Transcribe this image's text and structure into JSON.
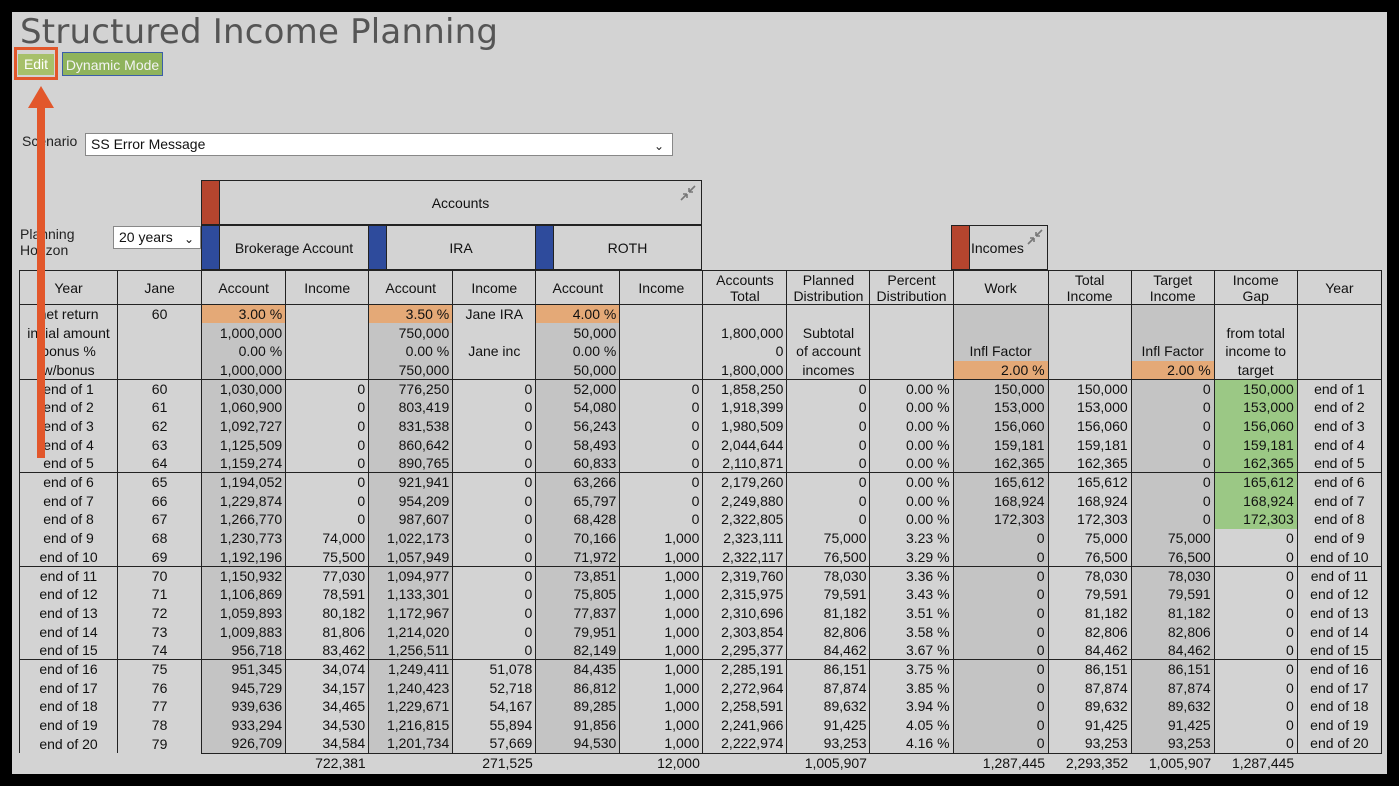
{
  "page": {
    "title": "Structured Income Planning",
    "edit_label": "Edit",
    "dynamic_label": "Dynamic Mode"
  },
  "scenario": {
    "label": "Scenario",
    "value": "SS Error Message"
  },
  "horizon": {
    "label_line1": "Planning",
    "label_line2": "Horizon",
    "value": "20 years"
  },
  "groups": {
    "accounts": "Accounts",
    "brokerage": "Brokerage Account",
    "ira": "IRA",
    "roth": "ROTH",
    "incomes": "Incomes"
  },
  "headers": {
    "year": "Year",
    "jane": "Jane",
    "account": "Account",
    "income": "Income",
    "accounts_total_1": "Accounts",
    "accounts_total_2": "Total",
    "planned_1": "Planned",
    "planned_2": "Distribution",
    "percent_1": "Percent",
    "percent_2": "Distribution",
    "work": "Work",
    "total_income_1": "Total",
    "total_income_2": "Income",
    "target_1": "Target",
    "target_2": "Income",
    "gap_1": "Income",
    "gap_2": "Gap",
    "year_end": "Year"
  },
  "params": {
    "net_return": "net return",
    "initial_amount": "initial amount",
    "bonus_pct": "bonus %",
    "w_bonus": "w/bonus",
    "jane_age": "60",
    "brokerage": {
      "return": "3.00  %",
      "initial": "1,000,000",
      "bonus": "0.00  %",
      "w_bonus": "1,000,000"
    },
    "ira": {
      "return": "3.50  %",
      "initial": "750,000",
      "bonus": "0.00  %",
      "w_bonus": "750,000",
      "income_label1": "Jane IRA",
      "income_label2": "Jane inc"
    },
    "roth": {
      "return": "4.00  %",
      "initial": "50,000",
      "bonus": "0.00  %",
      "w_bonus": "50,000"
    },
    "accounts_total": {
      "initial": "1,800,000",
      "bonus": "0",
      "w_bonus": "1,800,000"
    },
    "planned_note": [
      "Subtotal",
      "of account",
      "incomes"
    ],
    "infl_label": "Infl Factor",
    "work_infl": "2.00  %",
    "target_infl": "2.00  %",
    "gap_note": [
      "from total",
      "income to",
      "target"
    ]
  },
  "rows": [
    {
      "y": "end of 1",
      "a": "60",
      "ba": "1,030,000",
      "bi": "0",
      "ia": "776,250",
      "ii": "0",
      "ra": "52,000",
      "ri": "0",
      "t": "1,858,250",
      "pd": "0",
      "pct": "0.00  %",
      "w": "150,000",
      "ti": "150,000",
      "tg": "0",
      "gap": "150,000"
    },
    {
      "y": "end of 2",
      "a": "61",
      "ba": "1,060,900",
      "bi": "0",
      "ia": "803,419",
      "ii": "0",
      "ra": "54,080",
      "ri": "0",
      "t": "1,918,399",
      "pd": "0",
      "pct": "0.00  %",
      "w": "153,000",
      "ti": "153,000",
      "tg": "0",
      "gap": "153,000"
    },
    {
      "y": "end of 3",
      "a": "62",
      "ba": "1,092,727",
      "bi": "0",
      "ia": "831,538",
      "ii": "0",
      "ra": "56,243",
      "ri": "0",
      "t": "1,980,509",
      "pd": "0",
      "pct": "0.00  %",
      "w": "156,060",
      "ti": "156,060",
      "tg": "0",
      "gap": "156,060"
    },
    {
      "y": "end of 4",
      "a": "63",
      "ba": "1,125,509",
      "bi": "0",
      "ia": "860,642",
      "ii": "0",
      "ra": "58,493",
      "ri": "0",
      "t": "2,044,644",
      "pd": "0",
      "pct": "0.00  %",
      "w": "159,181",
      "ti": "159,181",
      "tg": "0",
      "gap": "159,181"
    },
    {
      "y": "end of 5",
      "a": "64",
      "ba": "1,159,274",
      "bi": "0",
      "ia": "890,765",
      "ii": "0",
      "ra": "60,833",
      "ri": "0",
      "t": "2,110,871",
      "pd": "0",
      "pct": "0.00  %",
      "w": "162,365",
      "ti": "162,365",
      "tg": "0",
      "gap": "162,365"
    },
    {
      "y": "end of 6",
      "a": "65",
      "ba": "1,194,052",
      "bi": "0",
      "ia": "921,941",
      "ii": "0",
      "ra": "63,266",
      "ri": "0",
      "t": "2,179,260",
      "pd": "0",
      "pct": "0.00  %",
      "w": "165,612",
      "ti": "165,612",
      "tg": "0",
      "gap": "165,612"
    },
    {
      "y": "end of 7",
      "a": "66",
      "ba": "1,229,874",
      "bi": "0",
      "ia": "954,209",
      "ii": "0",
      "ra": "65,797",
      "ri": "0",
      "t": "2,249,880",
      "pd": "0",
      "pct": "0.00  %",
      "w": "168,924",
      "ti": "168,924",
      "tg": "0",
      "gap": "168,924"
    },
    {
      "y": "end of 8",
      "a": "67",
      "ba": "1,266,770",
      "bi": "0",
      "ia": "987,607",
      "ii": "0",
      "ra": "68,428",
      "ri": "0",
      "t": "2,322,805",
      "pd": "0",
      "pct": "0.00  %",
      "w": "172,303",
      "ti": "172,303",
      "tg": "0",
      "gap": "172,303"
    },
    {
      "y": "end of 9",
      "a": "68",
      "ba": "1,230,773",
      "bi": "74,000",
      "ia": "1,022,173",
      "ii": "0",
      "ra": "70,166",
      "ri": "1,000",
      "t": "2,323,111",
      "pd": "75,000",
      "pct": "3.23  %",
      "w": "0",
      "ti": "75,000",
      "tg": "75,000",
      "gap": "0"
    },
    {
      "y": "end of 10",
      "a": "69",
      "ba": "1,192,196",
      "bi": "75,500",
      "ia": "1,057,949",
      "ii": "0",
      "ra": "71,972",
      "ri": "1,000",
      "t": "2,322,117",
      "pd": "76,500",
      "pct": "3.29  %",
      "w": "0",
      "ti": "76,500",
      "tg": "76,500",
      "gap": "0"
    },
    {
      "y": "end of 11",
      "a": "70",
      "ba": "1,150,932",
      "bi": "77,030",
      "ia": "1,094,977",
      "ii": "0",
      "ra": "73,851",
      "ri": "1,000",
      "t": "2,319,760",
      "pd": "78,030",
      "pct": "3.36  %",
      "w": "0",
      "ti": "78,030",
      "tg": "78,030",
      "gap": "0"
    },
    {
      "y": "end of 12",
      "a": "71",
      "ba": "1,106,869",
      "bi": "78,591",
      "ia": "1,133,301",
      "ii": "0",
      "ra": "75,805",
      "ri": "1,000",
      "t": "2,315,975",
      "pd": "79,591",
      "pct": "3.43  %",
      "w": "0",
      "ti": "79,591",
      "tg": "79,591",
      "gap": "0"
    },
    {
      "y": "end of 13",
      "a": "72",
      "ba": "1,059,893",
      "bi": "80,182",
      "ia": "1,172,967",
      "ii": "0",
      "ra": "77,837",
      "ri": "1,000",
      "t": "2,310,696",
      "pd": "81,182",
      "pct": "3.51  %",
      "w": "0",
      "ti": "81,182",
      "tg": "81,182",
      "gap": "0"
    },
    {
      "y": "end of 14",
      "a": "73",
      "ba": "1,009,883",
      "bi": "81,806",
      "ia": "1,214,020",
      "ii": "0",
      "ra": "79,951",
      "ri": "1,000",
      "t": "2,303,854",
      "pd": "82,806",
      "pct": "3.58  %",
      "w": "0",
      "ti": "82,806",
      "tg": "82,806",
      "gap": "0"
    },
    {
      "y": "end of 15",
      "a": "74",
      "ba": "956,718",
      "bi": "83,462",
      "ia": "1,256,511",
      "ii": "0",
      "ra": "82,149",
      "ri": "1,000",
      "t": "2,295,377",
      "pd": "84,462",
      "pct": "3.67  %",
      "w": "0",
      "ti": "84,462",
      "tg": "84,462",
      "gap": "0"
    },
    {
      "y": "end of 16",
      "a": "75",
      "ba": "951,345",
      "bi": "34,074",
      "ia": "1,249,411",
      "ii": "51,078",
      "ra": "84,435",
      "ri": "1,000",
      "t": "2,285,191",
      "pd": "86,151",
      "pct": "3.75  %",
      "w": "0",
      "ti": "86,151",
      "tg": "86,151",
      "gap": "0"
    },
    {
      "y": "end of 17",
      "a": "76",
      "ba": "945,729",
      "bi": "34,157",
      "ia": "1,240,423",
      "ii": "52,718",
      "ra": "86,812",
      "ri": "1,000",
      "t": "2,272,964",
      "pd": "87,874",
      "pct": "3.85  %",
      "w": "0",
      "ti": "87,874",
      "tg": "87,874",
      "gap": "0"
    },
    {
      "y": "end of 18",
      "a": "77",
      "ba": "939,636",
      "bi": "34,465",
      "ia": "1,229,671",
      "ii": "54,167",
      "ra": "89,285",
      "ri": "1,000",
      "t": "2,258,591",
      "pd": "89,632",
      "pct": "3.94  %",
      "w": "0",
      "ti": "89,632",
      "tg": "89,632",
      "gap": "0"
    },
    {
      "y": "end of 19",
      "a": "78",
      "ba": "933,294",
      "bi": "34,530",
      "ia": "1,216,815",
      "ii": "55,894",
      "ra": "91,856",
      "ri": "1,000",
      "t": "2,241,966",
      "pd": "91,425",
      "pct": "4.05  %",
      "w": "0",
      "ti": "91,425",
      "tg": "91,425",
      "gap": "0"
    },
    {
      "y": "end of 20",
      "a": "79",
      "ba": "926,709",
      "bi": "34,584",
      "ia": "1,201,734",
      "ii": "57,669",
      "ra": "94,530",
      "ri": "1,000",
      "t": "2,222,974",
      "pd": "93,253",
      "pct": "4.16  %",
      "w": "0",
      "ti": "93,253",
      "tg": "93,253",
      "gap": "0"
    }
  ],
  "totals": {
    "bi": "722,381",
    "ii": "271,525",
    "ri": "12,000",
    "pd": "1,005,907",
    "w": "1,287,445",
    "ti": "2,293,352",
    "tg": "1,005,907",
    "gap": "1,287,445"
  },
  "colors": {
    "brokerage_swatch": "#b5452e",
    "ira_swatch": "#2e4b9c",
    "roth_swatch": "#2e4b9c",
    "incomes_swatch": "#b5452e",
    "highlight_orange": "#e4a977",
    "highlight_green": "#9bc885"
  }
}
